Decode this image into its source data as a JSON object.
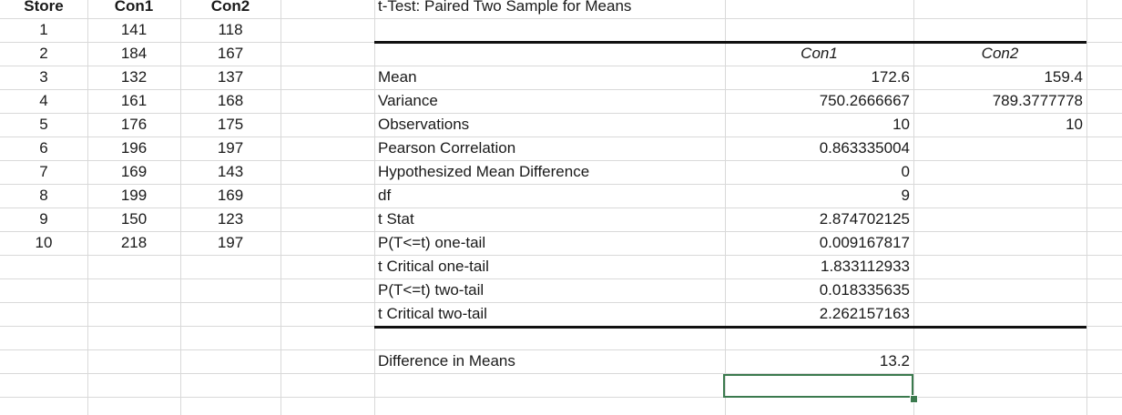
{
  "data_table": {
    "headers": [
      "Store",
      "Con1",
      "Con2"
    ],
    "rows": [
      [
        "1",
        "141",
        "118"
      ],
      [
        "2",
        "184",
        "167"
      ],
      [
        "3",
        "132",
        "137"
      ],
      [
        "4",
        "161",
        "168"
      ],
      [
        "5",
        "176",
        "175"
      ],
      [
        "6",
        "196",
        "197"
      ],
      [
        "7",
        "169",
        "143"
      ],
      [
        "8",
        "199",
        "169"
      ],
      [
        "9",
        "150",
        "123"
      ],
      [
        "10",
        "218",
        "197"
      ]
    ]
  },
  "ttest": {
    "title": "t-Test: Paired Two Sample for Means",
    "col1_header": "Con1",
    "col2_header": "Con2",
    "rows": [
      {
        "label": "Mean",
        "v1": "172.6",
        "v2": "159.4"
      },
      {
        "label": "Variance",
        "v1": "750.2666667",
        "v2": "789.3777778"
      },
      {
        "label": "Observations",
        "v1": "10",
        "v2": "10"
      },
      {
        "label": "Pearson Correlation",
        "v1": "0.863335004",
        "v2": ""
      },
      {
        "label": "Hypothesized Mean Difference",
        "v1": "0",
        "v2": ""
      },
      {
        "label": "df",
        "v1": "9",
        "v2": ""
      },
      {
        "label": "t Stat",
        "v1": "2.874702125",
        "v2": ""
      },
      {
        "label": "P(T<=t) one-tail",
        "v1": "0.009167817",
        "v2": ""
      },
      {
        "label": "t Critical one-tail",
        "v1": "1.833112933",
        "v2": ""
      },
      {
        "label": "P(T<=t) two-tail",
        "v1": "0.018335635",
        "v2": ""
      },
      {
        "label": "t Critical two-tail",
        "v1": "2.262157163",
        "v2": ""
      }
    ],
    "difference_label": "Difference in Means",
    "difference_value": "13.2"
  },
  "colors": {
    "gridline": "#d9d9d9",
    "selection": "#3b7a4e",
    "rule": "#111111"
  }
}
